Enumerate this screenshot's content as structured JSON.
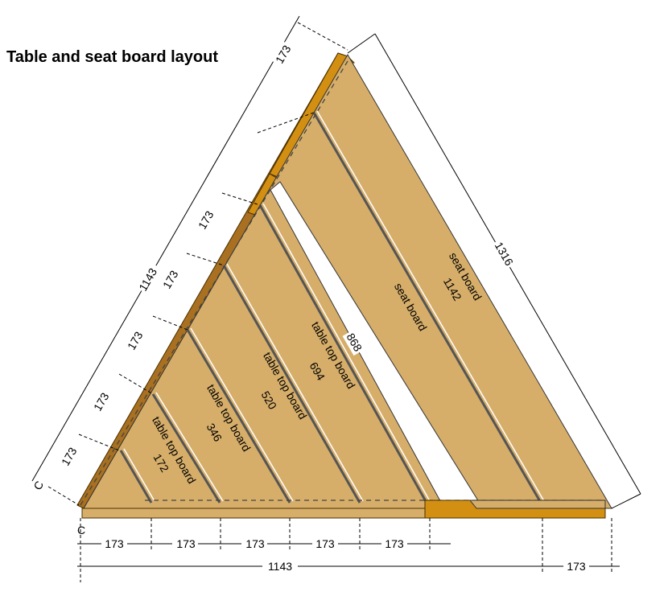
{
  "title": "Table and seat board layout",
  "colors": {
    "wood": "#d6ae6a",
    "frame": "#d38f12",
    "frame_dark": "#a87020"
  },
  "labels": {
    "table_top_board": "table top board",
    "seat_board": "seat board",
    "corner": "C"
  },
  "lengths": {
    "t172": "172",
    "t346": "346",
    "t520": "520",
    "t694": "694",
    "d868": "868",
    "s1142": "1142",
    "h1316": "1316"
  },
  "dims": {
    "spacing": "173",
    "total": "1143"
  }
}
